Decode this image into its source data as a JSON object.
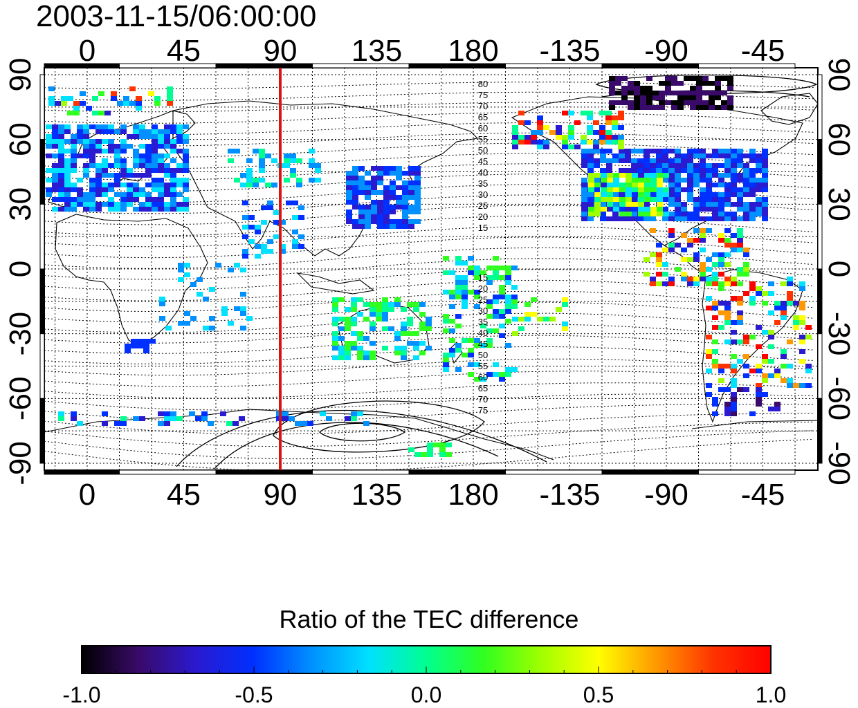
{
  "title": "2003-11-15/06:00:00",
  "map": {
    "lon_ticks": [
      "0",
      "45",
      "90",
      "135",
      "180",
      "-135",
      "-90",
      "-45"
    ],
    "lat_ticks": [
      "90",
      "60",
      "30",
      "0",
      "-30",
      "-60",
      "-90"
    ],
    "marker_longitude": 90,
    "marker_color": "#dd1111",
    "contour_labels_north": [
      "80",
      "75",
      "70",
      "65",
      "60",
      "55",
      "50",
      "45",
      "40",
      "35",
      "30",
      "25",
      "20",
      "15"
    ],
    "contour_labels_south": [
      "15",
      "20",
      "25",
      "30",
      "35",
      "40",
      "45",
      "50",
      "55",
      "60",
      "65",
      "70",
      "75"
    ]
  },
  "colorbar": {
    "title": "Ratio of the TEC difference",
    "ticks": [
      "-1.0",
      "-0.5",
      "0.0",
      "0.5",
      "1.0"
    ],
    "range": [
      -1.0,
      1.0
    ],
    "colors": [
      "#000000",
      "#3a0a6a",
      "#2a1ad0",
      "#0030ff",
      "#0090ff",
      "#00e0ff",
      "#00ff90",
      "#30ff20",
      "#a0ff00",
      "#ffff00",
      "#ff9900",
      "#ff3300",
      "#ff0000"
    ]
  }
}
